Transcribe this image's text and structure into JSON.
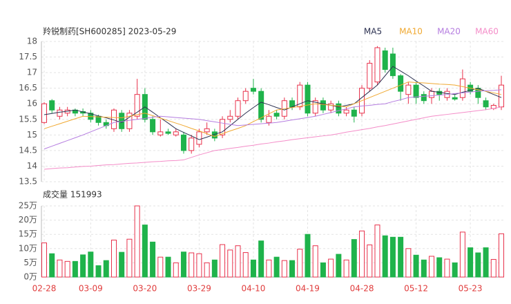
{
  "chart_data": [
    {
      "type": "candlestick",
      "title": "羚锐制药[SH600285] 2023-05-29",
      "up_color": "#e8304a",
      "down_color": "#1fb34b",
      "open": [
        15.4,
        16.1,
        15.6,
        15.7,
        15.8,
        15.75,
        15.7,
        15.6,
        15.4,
        15.2,
        15.7,
        15.2,
        15.6,
        16.3,
        15.5,
        15.0,
        15.1,
        15.0,
        15.0,
        14.5,
        14.7,
        15.1,
        15.1,
        15.0,
        15.5,
        15.6,
        16.1,
        16.5,
        16.4,
        15.4,
        15.7,
        15.6,
        16.1,
        15.9,
        16.6,
        15.7,
        16.1,
        15.8,
        16.0,
        15.7,
        15.8,
        15.7,
        16.5,
        16.7,
        17.7,
        17.6,
        16.9,
        16.3,
        16.6,
        16.3,
        16.2,
        16.4,
        16.2,
        16.2,
        16.2,
        16.6,
        16.5,
        16.1,
        15.85,
        15.9
      ],
      "high": [
        16.05,
        16.15,
        15.9,
        15.9,
        15.85,
        15.85,
        15.8,
        15.65,
        15.5,
        15.85,
        15.8,
        15.8,
        16.8,
        16.5,
        15.6,
        15.5,
        15.2,
        15.2,
        15.1,
        15.0,
        15.2,
        15.4,
        15.2,
        15.6,
        15.8,
        16.2,
        16.5,
        16.8,
        16.5,
        15.8,
        15.8,
        16.2,
        16.2,
        16.7,
        16.7,
        16.2,
        16.2,
        16.1,
        16.1,
        15.9,
        15.9,
        16.6,
        17.4,
        17.85,
        17.8,
        17.8,
        16.95,
        16.7,
        16.7,
        16.4,
        16.5,
        16.5,
        16.5,
        16.3,
        17.1,
        16.7,
        16.6,
        16.2,
        16.0,
        16.9
      ],
      "low": [
        15.35,
        15.7,
        15.5,
        15.6,
        15.6,
        15.6,
        15.4,
        15.3,
        15.2,
        15.1,
        15.1,
        15.1,
        15.5,
        15.4,
        15.0,
        14.95,
        15.0,
        14.95,
        14.4,
        14.4,
        14.6,
        15.0,
        14.8,
        14.9,
        15.4,
        15.5,
        16.0,
        16.3,
        15.4,
        15.3,
        15.5,
        15.5,
        15.8,
        15.8,
        15.6,
        15.6,
        15.7,
        15.7,
        15.6,
        15.6,
        15.4,
        15.6,
        16.4,
        16.6,
        17.0,
        16.8,
        16.1,
        16.0,
        16.0,
        16.0,
        16.0,
        16.1,
        16.1,
        16.1,
        16.1,
        16.3,
        16.0,
        15.8,
        15.8,
        15.8
      ],
      "close": [
        16.0,
        15.8,
        15.8,
        15.8,
        15.7,
        15.7,
        15.5,
        15.4,
        15.3,
        15.8,
        15.2,
        15.7,
        16.3,
        15.5,
        15.1,
        15.1,
        15.05,
        15.1,
        14.5,
        14.9,
        15.1,
        15.2,
        14.9,
        15.5,
        15.6,
        16.1,
        16.4,
        16.4,
        15.5,
        15.6,
        15.6,
        16.1,
        15.9,
        16.6,
        15.7,
        16.1,
        15.8,
        16.0,
        15.7,
        15.8,
        15.6,
        16.5,
        17.3,
        17.8,
        17.1,
        16.9,
        16.4,
        16.6,
        16.2,
        16.1,
        16.4,
        16.3,
        16.4,
        16.15,
        16.8,
        16.4,
        16.2,
        15.9,
        15.95,
        16.6
      ],
      "series": [
        {
          "name": "MA5",
          "color": "#2b3050",
          "values": [
            15.65,
            15.69,
            15.73,
            15.76,
            15.8,
            15.74,
            15.68,
            15.61,
            15.55,
            15.48,
            15.4,
            15.57,
            15.73,
            15.9,
            15.73,
            15.55,
            15.38,
            15.2,
            15.08,
            14.97,
            14.85,
            14.93,
            15.02,
            15.1,
            15.3,
            15.5,
            15.7,
            15.88,
            16.05,
            15.97,
            15.88,
            15.8,
            15.9,
            16.0,
            16.1,
            16.05,
            16.0,
            15.95,
            15.9,
            15.95,
            16.0,
            16.2,
            16.4,
            16.6,
            16.9,
            17.2,
            17.05,
            16.9,
            16.73,
            16.57,
            16.4,
            16.37,
            16.33,
            16.3,
            16.37,
            16.43,
            16.5,
            16.4,
            16.3,
            16.2
          ]
        },
        {
          "name": "MA10",
          "color": "#f0a830",
          "values": [
            15.2,
            15.28,
            15.36,
            15.44,
            15.52,
            15.6,
            15.59,
            15.58,
            15.57,
            15.56,
            15.55,
            15.6,
            15.65,
            15.7,
            15.62,
            15.54,
            15.46,
            15.38,
            15.3,
            15.21,
            15.13,
            15.04,
            14.95,
            15.04,
            15.13,
            15.21,
            15.3,
            15.43,
            15.55,
            15.68,
            15.8,
            15.84,
            15.88,
            15.92,
            15.96,
            16.0,
            15.98,
            15.95,
            15.93,
            15.9,
            16.0,
            16.1,
            16.2,
            16.3,
            16.4,
            16.5,
            16.6,
            16.7,
            16.68,
            16.67,
            16.65,
            16.63,
            16.62,
            16.6,
            16.55,
            16.5,
            16.45,
            16.4,
            16.35,
            16.3
          ]
        },
        {
          "name": "MA20",
          "color": "#b57de0",
          "values": [
            14.55,
            14.64,
            14.73,
            14.82,
            14.91,
            15.0,
            15.1,
            15.2,
            15.3,
            15.4,
            15.43,
            15.47,
            15.5,
            15.53,
            15.57,
            15.6,
            15.58,
            15.56,
            15.54,
            15.52,
            15.5,
            15.46,
            15.42,
            15.38,
            15.34,
            15.3,
            15.32,
            15.34,
            15.36,
            15.38,
            15.4,
            15.44,
            15.48,
            15.52,
            15.56,
            15.6,
            15.66,
            15.72,
            15.78,
            15.84,
            15.9,
            15.93,
            15.95,
            15.98,
            16.0,
            16.07,
            16.13,
            16.2,
            16.22,
            16.24,
            16.26,
            16.28,
            16.3,
            16.33,
            16.35,
            16.38,
            16.4,
            16.42,
            16.43,
            16.45
          ]
        },
        {
          "name": "MA60",
          "color": "#f48cc8",
          "values": [
            13.9,
            13.92,
            13.94,
            13.95,
            13.97,
            13.99,
            14.0,
            14.02,
            14.04,
            14.05,
            14.07,
            14.09,
            14.1,
            14.12,
            14.14,
            14.15,
            14.17,
            14.18,
            14.2,
            14.28,
            14.36,
            14.43,
            14.5,
            14.53,
            14.57,
            14.6,
            14.64,
            14.67,
            14.71,
            14.74,
            14.78,
            14.81,
            14.85,
            14.88,
            14.91,
            14.94,
            14.97,
            15.0,
            15.04,
            15.09,
            15.13,
            15.17,
            15.21,
            15.26,
            15.3,
            15.35,
            15.4,
            15.45,
            15.5,
            15.55,
            15.6,
            15.63,
            15.66,
            15.69,
            15.72,
            15.75,
            15.78,
            15.81,
            15.85,
            15.9
          ]
        }
      ],
      "ylim": [
        13.5,
        18
      ],
      "yticks": [
        13.5,
        14,
        14.5,
        15,
        15.5,
        16,
        16.5,
        17,
        17.5,
        18
      ],
      "grid": true
    },
    {
      "type": "bar",
      "title": "成交量 151993",
      "categories": [
        "02-28",
        null,
        null,
        null,
        null,
        null,
        "03-09",
        null,
        null,
        null,
        null,
        null,
        null,
        "03-20",
        null,
        null,
        null,
        null,
        null,
        null,
        "03-29",
        null,
        null,
        null,
        null,
        null,
        null,
        "04-10",
        null,
        null,
        null,
        null,
        null,
        null,
        "04-19",
        null,
        null,
        null,
        null,
        null,
        null,
        "04-28",
        null,
        null,
        null,
        null,
        null,
        null,
        "05-12",
        null,
        null,
        null,
        null,
        null,
        null,
        "05-23",
        null,
        null,
        null,
        null
      ],
      "values": [
        12,
        8.2,
        6,
        5.5,
        5.5,
        7.8,
        8.8,
        4,
        5.8,
        13,
        8.7,
        13.3,
        25,
        18.3,
        12.3,
        7,
        7,
        5,
        8.8,
        8.5,
        8.2,
        5,
        6,
        11.4,
        9.5,
        11,
        8.6,
        6,
        12.7,
        6,
        7,
        5.8,
        5.8,
        9.8,
        15,
        11,
        5,
        6.3,
        8,
        6,
        13.2,
        16.2,
        11.3,
        18.3,
        14.5,
        14,
        14,
        10,
        7.7,
        6,
        7.3,
        6.8,
        6.3,
        5,
        15.8,
        10.3,
        8.5,
        10.3,
        6.2,
        15.1993
      ],
      "ylim": [
        0,
        25
      ],
      "yticks": [
        {
          "value": 0,
          "label": "0万"
        },
        {
          "value": 5,
          "label": "5万"
        },
        {
          "value": 10,
          "label": "10万"
        },
        {
          "value": 15,
          "label": "15万"
        },
        {
          "value": 20,
          "label": "20万"
        },
        {
          "value": 25,
          "label": "25万"
        }
      ],
      "grid": true
    }
  ]
}
